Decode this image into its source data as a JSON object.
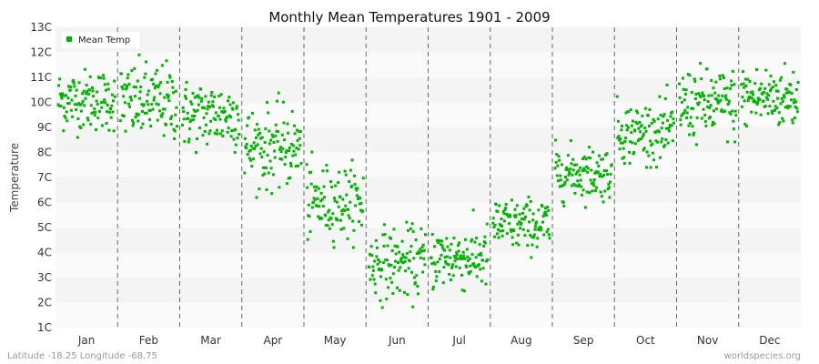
{
  "chart_data": {
    "type": "scatter",
    "title": "Monthly Mean Temperatures 1901 - 2009",
    "xlabel": "",
    "ylabel": "Temperature",
    "months": [
      "Jan",
      "Feb",
      "Mar",
      "Apr",
      "May",
      "Jun",
      "Jul",
      "Aug",
      "Sep",
      "Oct",
      "Nov",
      "Dec"
    ],
    "y_ticks": [
      "1C",
      "2C",
      "3C",
      "4C",
      "5C",
      "6C",
      "7C",
      "8C",
      "9C",
      "10C",
      "11C",
      "12C",
      "13C"
    ],
    "ylim": [
      1,
      13
    ],
    "grid": true,
    "legend": {
      "entries": [
        "Mean Temp"
      ],
      "placement": "top-left"
    },
    "series": [
      {
        "name": "Mean Temp",
        "color": "#00b400",
        "years": [
          1901,
          2009
        ],
        "monthly_summary": [
          {
            "month": "Jan",
            "mean": 10.1,
            "min": 8.6,
            "max": 11.9
          },
          {
            "month": "Feb",
            "mean": 10.0,
            "min": 7.7,
            "max": 11.9
          },
          {
            "month": "Mar",
            "mean": 9.5,
            "min": 8.0,
            "max": 11.8
          },
          {
            "month": "Apr",
            "mean": 8.2,
            "min": 6.2,
            "max": 10.6
          },
          {
            "month": "May",
            "mean": 6.0,
            "min": 4.2,
            "max": 8.2
          },
          {
            "month": "Jun",
            "mean": 3.6,
            "min": 1.8,
            "max": 5.6
          },
          {
            "month": "Jul",
            "mean": 3.8,
            "min": 2.2,
            "max": 5.7
          },
          {
            "month": "Aug",
            "mean": 5.1,
            "min": 3.8,
            "max": 6.7
          },
          {
            "month": "Sep",
            "mean": 7.2,
            "min": 5.8,
            "max": 8.7
          },
          {
            "month": "Oct",
            "mean": 8.8,
            "min": 7.4,
            "max": 10.7
          },
          {
            "month": "Nov",
            "mean": 9.9,
            "min": 7.9,
            "max": 11.8
          },
          {
            "month": "Dec",
            "mean": 10.2,
            "min": 8.9,
            "max": 12.4
          }
        ]
      }
    ]
  },
  "footer": {
    "location": "Latitude -18.25 Longitude -68.75",
    "site": "worldspecies.org"
  },
  "colors": {
    "marker": "#00b400",
    "band_dark": "#f4f4f4",
    "band_light": "#fafafa",
    "divider": "#666666"
  }
}
